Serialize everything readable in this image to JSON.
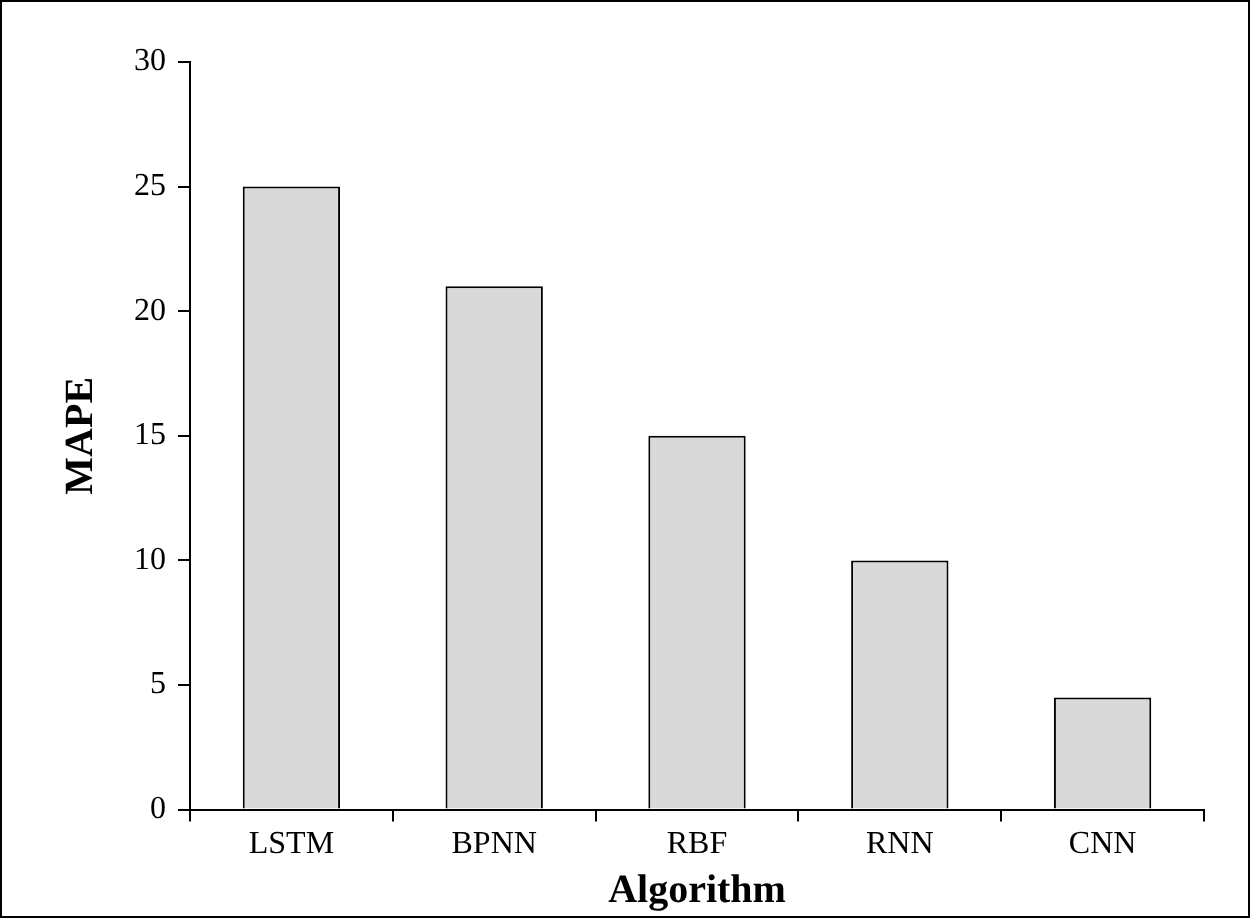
{
  "chart_data": {
    "type": "bar",
    "xlabel": "Algorithm",
    "ylabel": "MAPE",
    "categories": [
      "LSTM",
      "BPNN",
      "RBF",
      "RNN",
      "CNN"
    ],
    "values": [
      25,
      21,
      15,
      10,
      4.5
    ],
    "color": "#d9d9d9",
    "ylim": [
      0,
      30
    ],
    "yticks": [
      0,
      5,
      10,
      15,
      20,
      25,
      30
    ],
    "grid": false,
    "legend": false
  }
}
